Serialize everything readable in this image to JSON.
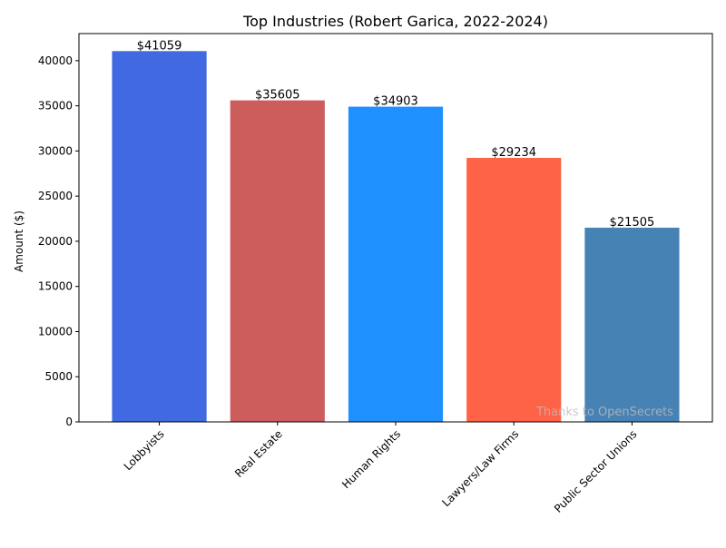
{
  "chart_data": {
    "type": "bar",
    "title": "Top Industries (Robert Garica, 2022-2024)",
    "xlabel": "",
    "ylabel": "Amount ($)",
    "categories": [
      "Lobbyists",
      "Real Estate",
      "Human Rights",
      "Lawyers/Law Firms",
      "Public Sector Unions"
    ],
    "values": [
      41059,
      35605,
      34903,
      29234,
      21505
    ],
    "value_labels": [
      "$41059",
      "$35605",
      "$34903",
      "$29234",
      "$21505"
    ],
    "colors": [
      "#4169e1",
      "#cd5c5c",
      "#1e90ff",
      "#ff6347",
      "#4682b4"
    ],
    "ylim": [
      0,
      43000
    ],
    "yticks": [
      0,
      5000,
      10000,
      15000,
      20000,
      25000,
      30000,
      35000,
      40000
    ],
    "grid": false,
    "legend": "none",
    "watermark": "Thanks to OpenSecrets"
  }
}
